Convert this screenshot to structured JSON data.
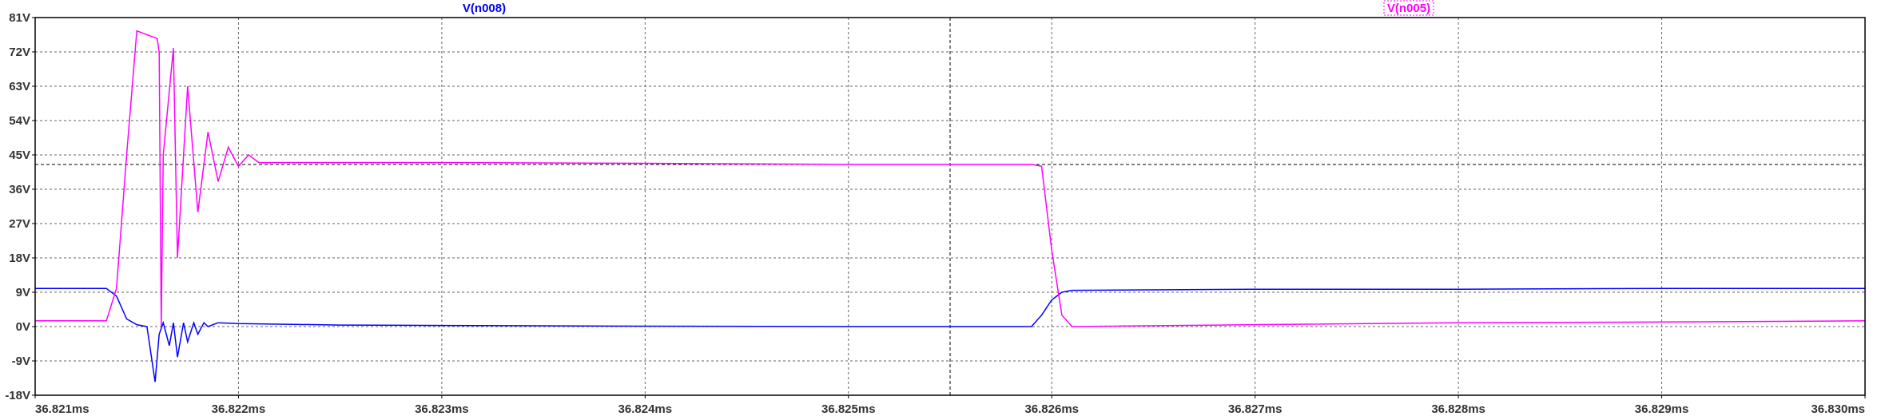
{
  "chart_data": {
    "type": "line",
    "title": "",
    "xlabel": "",
    "ylabel": "",
    "xlim": [
      36.821,
      36.83
    ],
    "ylim": [
      -18,
      81
    ],
    "grid": true,
    "x_ticks": [
      "36.821ms",
      "36.822ms",
      "36.823ms",
      "36.824ms",
      "36.825ms",
      "36.826ms",
      "36.827ms",
      "36.828ms",
      "36.829ms",
      "36.830ms"
    ],
    "y_ticks": [
      "-18V",
      "-9V",
      "0V",
      "9V",
      "18V",
      "27V",
      "36V",
      "45V",
      "54V",
      "63V",
      "72V",
      "81V"
    ],
    "cursor_x": 36.8255,
    "cursor_y": 42.5,
    "legend": [
      {
        "name": "V(n008)",
        "color": "#0000ff",
        "boxed": false
      },
      {
        "name": "V(n005)",
        "color": "#ff00ff",
        "boxed": true
      }
    ],
    "series": [
      {
        "name": "V(n008)",
        "color": "#0000ff",
        "points": [
          [
            36.821,
            10
          ],
          [
            36.82135,
            10
          ],
          [
            36.8214,
            8
          ],
          [
            36.82145,
            2
          ],
          [
            36.8215,
            0.5
          ],
          [
            36.82155,
            0
          ],
          [
            36.82159,
            -14.5
          ],
          [
            36.82161,
            -2
          ],
          [
            36.82163,
            1
          ],
          [
            36.82166,
            -5
          ],
          [
            36.82168,
            1
          ],
          [
            36.8217,
            -8
          ],
          [
            36.82173,
            1
          ],
          [
            36.82175,
            -4
          ],
          [
            36.82178,
            1
          ],
          [
            36.8218,
            -2
          ],
          [
            36.82183,
            1
          ],
          [
            36.82185,
            0
          ],
          [
            36.8219,
            1
          ],
          [
            36.822,
            0.8
          ],
          [
            36.8225,
            0.4
          ],
          [
            36.823,
            0.3
          ],
          [
            36.824,
            0.1
          ],
          [
            36.825,
            0
          ],
          [
            36.8259,
            0
          ],
          [
            36.82595,
            3
          ],
          [
            36.826,
            7
          ],
          [
            36.82605,
            9
          ],
          [
            36.8261,
            9.5
          ],
          [
            36.827,
            9.8
          ],
          [
            36.828,
            9.8
          ],
          [
            36.829,
            10
          ],
          [
            36.83,
            10
          ]
        ]
      },
      {
        "name": "V(n005)",
        "color": "#ff00ff",
        "points": [
          [
            36.821,
            1.5
          ],
          [
            36.82135,
            1.5
          ],
          [
            36.8214,
            10
          ],
          [
            36.82145,
            45
          ],
          [
            36.8215,
            77.5
          ],
          [
            36.8216,
            75.5
          ],
          [
            36.82161,
            72
          ],
          [
            36.82162,
            0
          ],
          [
            36.82163,
            45
          ],
          [
            36.82168,
            73
          ],
          [
            36.8217,
            18
          ],
          [
            36.82175,
            63
          ],
          [
            36.8218,
            30
          ],
          [
            36.82185,
            51
          ],
          [
            36.8219,
            38
          ],
          [
            36.82195,
            47
          ],
          [
            36.822,
            42
          ],
          [
            36.82205,
            45
          ],
          [
            36.8221,
            43
          ],
          [
            36.8222,
            43
          ],
          [
            36.823,
            43
          ],
          [
            36.824,
            42.8
          ],
          [
            36.825,
            42.5
          ],
          [
            36.8259,
            42.5
          ],
          [
            36.82595,
            42
          ],
          [
            36.826,
            20
          ],
          [
            36.82605,
            3
          ],
          [
            36.8261,
            0
          ],
          [
            36.827,
            0.5
          ],
          [
            36.828,
            1
          ],
          [
            36.829,
            1.2
          ],
          [
            36.83,
            1.5
          ]
        ]
      }
    ]
  }
}
